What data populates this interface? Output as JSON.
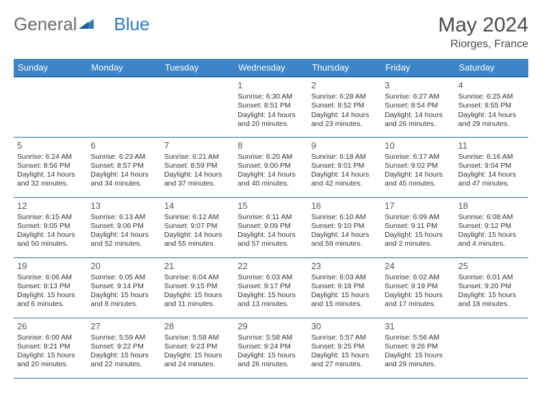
{
  "brand": {
    "part1": "General",
    "part2": "Blue"
  },
  "title": "May 2024",
  "location": "Riorges, France",
  "header_bg": "#3d85c6",
  "header_border": "#2a6aa3",
  "day_headers": [
    "Sunday",
    "Monday",
    "Tuesday",
    "Wednesday",
    "Thursday",
    "Friday",
    "Saturday"
  ],
  "weeks": [
    [
      {
        "n": "",
        "sr": "",
        "ss": "",
        "dl": ""
      },
      {
        "n": "",
        "sr": "",
        "ss": "",
        "dl": ""
      },
      {
        "n": "",
        "sr": "",
        "ss": "",
        "dl": ""
      },
      {
        "n": "1",
        "sr": "Sunrise: 6:30 AM",
        "ss": "Sunset: 8:51 PM",
        "dl": "Daylight: 14 hours and 20 minutes."
      },
      {
        "n": "2",
        "sr": "Sunrise: 6:28 AM",
        "ss": "Sunset: 8:52 PM",
        "dl": "Daylight: 14 hours and 23 minutes."
      },
      {
        "n": "3",
        "sr": "Sunrise: 6:27 AM",
        "ss": "Sunset: 8:54 PM",
        "dl": "Daylight: 14 hours and 26 minutes."
      },
      {
        "n": "4",
        "sr": "Sunrise: 6:25 AM",
        "ss": "Sunset: 8:55 PM",
        "dl": "Daylight: 14 hours and 29 minutes."
      }
    ],
    [
      {
        "n": "5",
        "sr": "Sunrise: 6:24 AM",
        "ss": "Sunset: 8:56 PM",
        "dl": "Daylight: 14 hours and 32 minutes."
      },
      {
        "n": "6",
        "sr": "Sunrise: 6:23 AM",
        "ss": "Sunset: 8:57 PM",
        "dl": "Daylight: 14 hours and 34 minutes."
      },
      {
        "n": "7",
        "sr": "Sunrise: 6:21 AM",
        "ss": "Sunset: 8:59 PM",
        "dl": "Daylight: 14 hours and 37 minutes."
      },
      {
        "n": "8",
        "sr": "Sunrise: 6:20 AM",
        "ss": "Sunset: 9:00 PM",
        "dl": "Daylight: 14 hours and 40 minutes."
      },
      {
        "n": "9",
        "sr": "Sunrise: 6:18 AM",
        "ss": "Sunset: 9:01 PM",
        "dl": "Daylight: 14 hours and 42 minutes."
      },
      {
        "n": "10",
        "sr": "Sunrise: 6:17 AM",
        "ss": "Sunset: 9:02 PM",
        "dl": "Daylight: 14 hours and 45 minutes."
      },
      {
        "n": "11",
        "sr": "Sunrise: 6:16 AM",
        "ss": "Sunset: 9:04 PM",
        "dl": "Daylight: 14 hours and 47 minutes."
      }
    ],
    [
      {
        "n": "12",
        "sr": "Sunrise: 6:15 AM",
        "ss": "Sunset: 9:05 PM",
        "dl": "Daylight: 14 hours and 50 minutes."
      },
      {
        "n": "13",
        "sr": "Sunrise: 6:13 AM",
        "ss": "Sunset: 9:06 PM",
        "dl": "Daylight: 14 hours and 52 minutes."
      },
      {
        "n": "14",
        "sr": "Sunrise: 6:12 AM",
        "ss": "Sunset: 9:07 PM",
        "dl": "Daylight: 14 hours and 55 minutes."
      },
      {
        "n": "15",
        "sr": "Sunrise: 6:11 AM",
        "ss": "Sunset: 9:09 PM",
        "dl": "Daylight: 14 hours and 57 minutes."
      },
      {
        "n": "16",
        "sr": "Sunrise: 6:10 AM",
        "ss": "Sunset: 9:10 PM",
        "dl": "Daylight: 14 hours and 59 minutes."
      },
      {
        "n": "17",
        "sr": "Sunrise: 6:09 AM",
        "ss": "Sunset: 9:11 PM",
        "dl": "Daylight: 15 hours and 2 minutes."
      },
      {
        "n": "18",
        "sr": "Sunrise: 6:08 AM",
        "ss": "Sunset: 9:12 PM",
        "dl": "Daylight: 15 hours and 4 minutes."
      }
    ],
    [
      {
        "n": "19",
        "sr": "Sunrise: 6:06 AM",
        "ss": "Sunset: 9:13 PM",
        "dl": "Daylight: 15 hours and 6 minutes."
      },
      {
        "n": "20",
        "sr": "Sunrise: 6:05 AM",
        "ss": "Sunset: 9:14 PM",
        "dl": "Daylight: 15 hours and 8 minutes."
      },
      {
        "n": "21",
        "sr": "Sunrise: 6:04 AM",
        "ss": "Sunset: 9:15 PM",
        "dl": "Daylight: 15 hours and 11 minutes."
      },
      {
        "n": "22",
        "sr": "Sunrise: 6:03 AM",
        "ss": "Sunset: 9:17 PM",
        "dl": "Daylight: 15 hours and 13 minutes."
      },
      {
        "n": "23",
        "sr": "Sunrise: 6:03 AM",
        "ss": "Sunset: 9:18 PM",
        "dl": "Daylight: 15 hours and 15 minutes."
      },
      {
        "n": "24",
        "sr": "Sunrise: 6:02 AM",
        "ss": "Sunset: 9:19 PM",
        "dl": "Daylight: 15 hours and 17 minutes."
      },
      {
        "n": "25",
        "sr": "Sunrise: 6:01 AM",
        "ss": "Sunset: 9:20 PM",
        "dl": "Daylight: 15 hours and 18 minutes."
      }
    ],
    [
      {
        "n": "26",
        "sr": "Sunrise: 6:00 AM",
        "ss": "Sunset: 9:21 PM",
        "dl": "Daylight: 15 hours and 20 minutes."
      },
      {
        "n": "27",
        "sr": "Sunrise: 5:59 AM",
        "ss": "Sunset: 9:22 PM",
        "dl": "Daylight: 15 hours and 22 minutes."
      },
      {
        "n": "28",
        "sr": "Sunrise: 5:58 AM",
        "ss": "Sunset: 9:23 PM",
        "dl": "Daylight: 15 hours and 24 minutes."
      },
      {
        "n": "29",
        "sr": "Sunrise: 5:58 AM",
        "ss": "Sunset: 9:24 PM",
        "dl": "Daylight: 15 hours and 26 minutes."
      },
      {
        "n": "30",
        "sr": "Sunrise: 5:57 AM",
        "ss": "Sunset: 9:25 PM",
        "dl": "Daylight: 15 hours and 27 minutes."
      },
      {
        "n": "31",
        "sr": "Sunrise: 5:56 AM",
        "ss": "Sunset: 9:26 PM",
        "dl": "Daylight: 15 hours and 29 minutes."
      },
      {
        "n": "",
        "sr": "",
        "ss": "",
        "dl": ""
      }
    ]
  ]
}
